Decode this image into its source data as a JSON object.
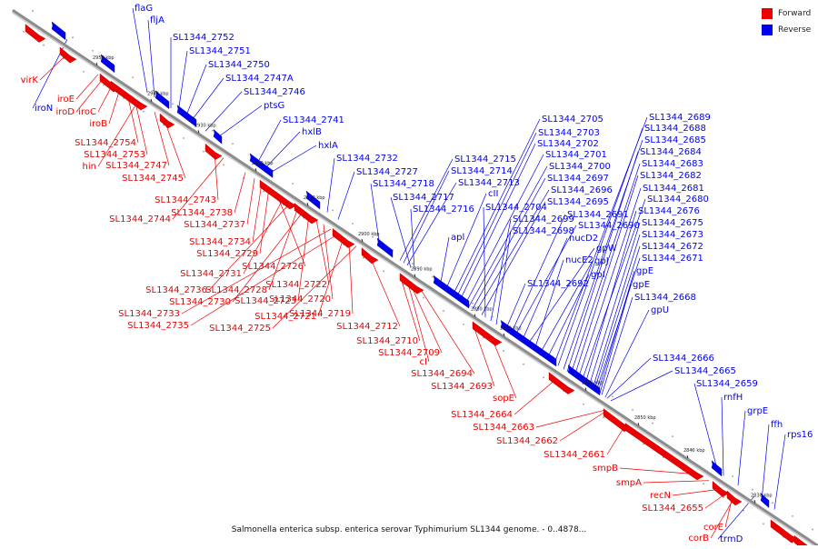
{
  "caption": "Salmonella enterica subsp. enterica serovar Typhimurium SL1344 genome. - 0..4878...",
  "legend": [
    {
      "label": "Forward",
      "color": "#ee0000"
    },
    {
      "label": "Reverse",
      "color": "#0000ee"
    }
  ],
  "colors": {
    "forward": "#ee0000",
    "reverse": "#0000ee",
    "axis": "#8c8c8c"
  },
  "ticks": [
    "2950 kbp",
    "2940 kbp",
    "2930 kbp",
    "2920 kbp",
    "2910 kbp",
    "2900 kbp",
    "2890 kbp",
    "2880 kbp",
    "2870 kbp",
    "2860 kbp",
    "2850 kbp",
    "2840 kbp",
    "2830 kbp"
  ],
  "reverse_labels": [
    "flaG",
    "fljA",
    "SL1344_2752",
    "SL1344_2751",
    "SL1344_2750",
    "SL1344_2747A",
    "SL1344_2746",
    "ptsG",
    "SL1344_2741",
    "hxlB",
    "hxlA",
    "SL1344_2732",
    "SL1344_2727",
    "SL1344_2718",
    "SL1344_2715",
    "SL1344_2714",
    "SL1344_2713",
    "SL1344_2717",
    "SL1344_2716",
    "cII",
    "SL1344_2705",
    "SL1344_2703",
    "SL1344_2702",
    "SL1344_2701",
    "SL1344_2700",
    "SL1344_2697",
    "SL1344_2696",
    "SL1344_2695",
    "SL1344_2704",
    "SL1344_2699",
    "SL1344_2698",
    "SL1344_2691",
    "SL1344_2690",
    "apl",
    "nucD2",
    "gpW",
    "nucE2",
    "gpJ",
    "gpI",
    "SL1344_2692",
    "SL1344_2689",
    "SL1344_2688",
    "SL1344_2685",
    "SL1344_2684",
    "SL1344_2683",
    "SL1344_2682",
    "SL1344_2681",
    "SL1344_2680",
    "SL1344_2676",
    "SL1344_2675",
    "SL1344_2673",
    "SL1344_2672",
    "SL1344_2671",
    "gpE",
    "gpE",
    "SL1344_2668",
    "gpU",
    "SL1344_2666",
    "SL1344_2665",
    "SL1344_2659",
    "rnfH",
    "grpE",
    "ffh",
    "rps16",
    "trmD",
    "iroN"
  ],
  "forward_labels": [
    "virK",
    "iroE",
    "iroD",
    "iroC",
    "iroB",
    "SL1344_2754",
    "SL1344_2753",
    "hin",
    "SL1344_2747",
    "SL1344_2745",
    "SL1344_2743",
    "SL1344_2744",
    "SL1344_2738",
    "SL1344_2737",
    "SL1344_2734",
    "SL1344_2729",
    "SL1344_2726",
    "SL1344_2731",
    "SL1344_2736",
    "SL1344_2728",
    "SL1344_2730",
    "SL1344_2723",
    "SL1344_2722",
    "SL1344_2720",
    "SL1344_2733",
    "SL1344_2735",
    "SL1344_2721",
    "SL1344_2719",
    "SL1344_2725",
    "SL1344_2712",
    "SL1344_2710",
    "SL1344_2709",
    "cI",
    "SL1344_2694",
    "SL1344_2693",
    "sopE",
    "SL1344_2664",
    "SL1344_2663",
    "SL1344_2662",
    "SL1344_2661",
    "smpB",
    "smpA",
    "recN",
    "SL1344_2655",
    "corE",
    "corB"
  ]
}
